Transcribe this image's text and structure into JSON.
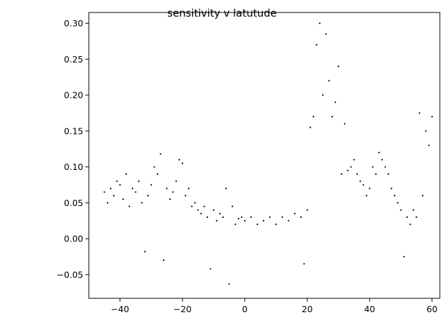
{
  "chart_data": {
    "type": "scatter",
    "title": "sensitivity v latutude",
    "xlabel": "",
    "ylabel": "",
    "xlim": [
      -50,
      62.5
    ],
    "ylim": [
      -0.083,
      0.315
    ],
    "xticks": [
      -40,
      -20,
      0,
      20,
      40,
      60
    ],
    "xtick_labels": [
      "−40",
      "−20",
      "0",
      "20",
      "40",
      "60"
    ],
    "yticks": [
      -0.05,
      0.0,
      0.05,
      0.1,
      0.15,
      0.2,
      0.25,
      0.3
    ],
    "ytick_labels": [
      "−0.05",
      "0.00",
      "0.05",
      "0.10",
      "0.15",
      "0.20",
      "0.25",
      "0.30"
    ],
    "grid": false,
    "marker_color": "#000000",
    "series": [
      {
        "points": [
          [
            -45,
            0.065
          ],
          [
            -44,
            0.05
          ],
          [
            -43,
            0.07
          ],
          [
            -42,
            0.06
          ],
          [
            -41,
            0.08
          ],
          [
            -40,
            0.075
          ],
          [
            -39,
            0.055
          ],
          [
            -38,
            0.09
          ],
          [
            -37,
            0.045
          ],
          [
            -36,
            0.07
          ],
          [
            -35,
            0.065
          ],
          [
            -34,
            0.08
          ],
          [
            -33,
            0.05
          ],
          [
            -32,
            -0.018
          ],
          [
            -31,
            0.06
          ],
          [
            -30,
            0.075
          ],
          [
            -29,
            0.1
          ],
          [
            -28,
            0.09
          ],
          [
            -27,
            0.118
          ],
          [
            -26,
            -0.03
          ],
          [
            -25,
            0.07
          ],
          [
            -24,
            0.055
          ],
          [
            -23,
            0.065
          ],
          [
            -22,
            0.08
          ],
          [
            -21,
            0.11
          ],
          [
            -20,
            0.105
          ],
          [
            -19,
            0.06
          ],
          [
            -18,
            0.07
          ],
          [
            -17,
            0.045
          ],
          [
            -16,
            0.05
          ],
          [
            -15,
            0.04
          ],
          [
            -14,
            0.035
          ],
          [
            -13,
            0.045
          ],
          [
            -12,
            0.03
          ],
          [
            -11,
            -0.042
          ],
          [
            -10,
            0.04
          ],
          [
            -9,
            0.025
          ],
          [
            -8,
            0.035
          ],
          [
            -7,
            0.03
          ],
          [
            -6,
            0.07
          ],
          [
            -5,
            -0.063
          ],
          [
            -4,
            0.045
          ],
          [
            -3,
            0.02
          ],
          [
            -2,
            0.028
          ],
          [
            -1,
            0.03
          ],
          [
            0,
            0.025
          ],
          [
            2,
            0.03
          ],
          [
            4,
            0.02
          ],
          [
            6,
            0.025
          ],
          [
            8,
            0.03
          ],
          [
            10,
            0.02
          ],
          [
            12,
            0.03
          ],
          [
            14,
            0.025
          ],
          [
            16,
            0.035
          ],
          [
            18,
            0.03
          ],
          [
            19,
            -0.035
          ],
          [
            20,
            0.04
          ],
          [
            21,
            0.155
          ],
          [
            22,
            0.17
          ],
          [
            23,
            0.27
          ],
          [
            24,
            0.3
          ],
          [
            25,
            0.2
          ],
          [
            26,
            0.285
          ],
          [
            27,
            0.22
          ],
          [
            28,
            0.17
          ],
          [
            29,
            0.19
          ],
          [
            30,
            0.24
          ],
          [
            31,
            0.09
          ],
          [
            32,
            0.16
          ],
          [
            33,
            0.095
          ],
          [
            34,
            0.1
          ],
          [
            35,
            0.11
          ],
          [
            36,
            0.09
          ],
          [
            37,
            0.08
          ],
          [
            38,
            0.075
          ],
          [
            39,
            0.06
          ],
          [
            40,
            0.07
          ],
          [
            41,
            0.1
          ],
          [
            42,
            0.09
          ],
          [
            43,
            0.12
          ],
          [
            44,
            0.11
          ],
          [
            45,
            0.1
          ],
          [
            46,
            0.09
          ],
          [
            47,
            0.07
          ],
          [
            48,
            0.06
          ],
          [
            49,
            0.05
          ],
          [
            50,
            0.04
          ],
          [
            51,
            -0.025
          ],
          [
            52,
            0.03
          ],
          [
            53,
            0.02
          ],
          [
            54,
            0.04
          ],
          [
            55,
            0.03
          ],
          [
            56,
            0.175
          ],
          [
            57,
            0.06
          ],
          [
            58,
            0.15
          ],
          [
            59,
            0.13
          ],
          [
            60,
            0.17
          ]
        ]
      }
    ]
  }
}
